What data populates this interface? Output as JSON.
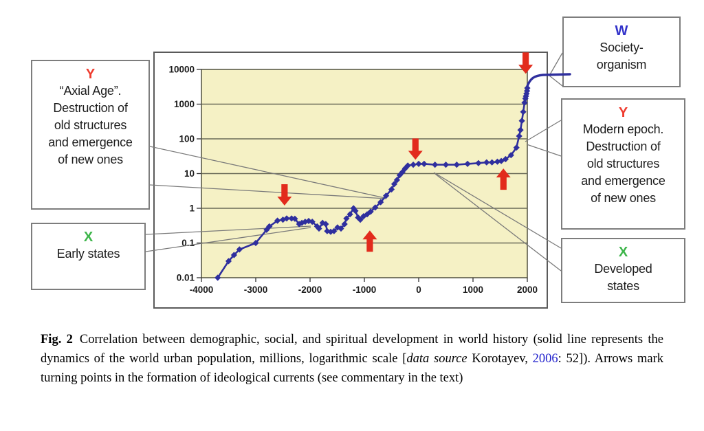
{
  "colors": {
    "letter_red": "#ef3b2e",
    "letter_green": "#3db54a",
    "letter_blue": "#3232ca",
    "line_navy": "#2f2f9e",
    "arrow_red": "#e22b1c",
    "plot_bg": "#f5f1c5",
    "gridline": "#6a6a58",
    "plot_border": "#50503f",
    "frame_border": "#5a5a5a",
    "box_border": "#7d7d7d",
    "citation_blue": "#2121cc",
    "tick_text": "#1a1a1a"
  },
  "callouts": {
    "axial_age": {
      "letter": "Y",
      "lines": [
        "“Axial Age”.",
        "Destruction of",
        "old structures",
        "and emergence",
        "of new ones"
      ]
    },
    "early_states": {
      "letter": "X",
      "lines": [
        "Early states"
      ]
    },
    "society_organism": {
      "letter": "W",
      "lines": [
        "Society-",
        "organism"
      ]
    },
    "modern_epoch": {
      "letter": "Y",
      "lines": [
        "Modern epoch.",
        "Destruction of",
        "old structures",
        "and emergence",
        "of new ones"
      ]
    },
    "developed_states": {
      "letter": "X",
      "lines": [
        "Developed",
        "states"
      ]
    }
  },
  "caption": {
    "label": "Fig. 2",
    "pre_italic": "Correlation between demographic, social, and spiritual development in world history (solid line represents the dynamics of the world urban population, millions, logarithmic scale [",
    "italic": "data source",
    "between": " Korotayev, ",
    "year_link": "2006",
    "post": ": 52]). Arrows mark turning points in the formation of ideological currents (see commentary in the text)"
  },
  "chart_data": {
    "type": "line",
    "title": "",
    "xlabel": "",
    "ylabel": "",
    "x_tick_labels": [
      "-4000",
      "-3000",
      "-2000",
      "-1000",
      "0",
      "1000",
      "2000"
    ],
    "y_tick_labels": [
      "10000",
      "1000",
      "100",
      "10",
      "1",
      "0.1",
      "0.01"
    ],
    "xlim": [
      -4000,
      2000
    ],
    "ylim_log": [
      0.01,
      10000
    ],
    "grid": "horizontal",
    "legend": "none",
    "series": [
      {
        "name": "world urban population, millions (log scale)",
        "marker": "diamond",
        "points": [
          [
            -3700,
            0.01
          ],
          [
            -3500,
            0.03
          ],
          [
            -3400,
            0.045
          ],
          [
            -3300,
            0.065
          ],
          [
            -3000,
            0.1
          ],
          [
            -2800,
            0.24
          ],
          [
            -2750,
            0.3
          ],
          [
            -2600,
            0.44
          ],
          [
            -2500,
            0.47
          ],
          [
            -2430,
            0.51
          ],
          [
            -2340,
            0.51
          ],
          [
            -2280,
            0.5
          ],
          [
            -2200,
            0.35
          ],
          [
            -2150,
            0.38
          ],
          [
            -2090,
            0.41
          ],
          [
            -2025,
            0.43
          ],
          [
            -1960,
            0.41
          ],
          [
            -1870,
            0.3
          ],
          [
            -1835,
            0.26
          ],
          [
            -1770,
            0.38
          ],
          [
            -1710,
            0.35
          ],
          [
            -1685,
            0.22
          ],
          [
            -1620,
            0.21
          ],
          [
            -1560,
            0.22
          ],
          [
            -1495,
            0.28
          ],
          [
            -1430,
            0.26
          ],
          [
            -1365,
            0.35
          ],
          [
            -1330,
            0.51
          ],
          [
            -1265,
            0.67
          ],
          [
            -1200,
            1.0
          ],
          [
            -1165,
            0.84
          ],
          [
            -1115,
            0.54
          ],
          [
            -1075,
            0.47
          ],
          [
            -1015,
            0.59
          ],
          [
            -950,
            0.67
          ],
          [
            -885,
            0.8
          ],
          [
            -800,
            1.05
          ],
          [
            -700,
            1.5
          ],
          [
            -600,
            2.3
          ],
          [
            -500,
            3.5
          ],
          [
            -450,
            5.0
          ],
          [
            -400,
            6.5
          ],
          [
            -350,
            9.0
          ],
          [
            -300,
            11
          ],
          [
            -250,
            14
          ],
          [
            -200,
            17
          ],
          [
            -100,
            18
          ],
          [
            0,
            19
          ],
          [
            100,
            19
          ],
          [
            300,
            18
          ],
          [
            500,
            18
          ],
          [
            700,
            18
          ],
          [
            900,
            19
          ],
          [
            1100,
            20
          ],
          [
            1250,
            21
          ],
          [
            1350,
            21
          ],
          [
            1450,
            22
          ],
          [
            1520,
            23
          ],
          [
            1600,
            26
          ],
          [
            1700,
            34
          ],
          [
            1800,
            56
          ],
          [
            1850,
            120
          ],
          [
            1875,
            180
          ],
          [
            1900,
            330
          ],
          [
            1925,
            600
          ],
          [
            1950,
            1100
          ],
          [
            1965,
            1450
          ],
          [
            1975,
            1700
          ],
          [
            1985,
            2000
          ],
          [
            1995,
            2400
          ],
          [
            2000,
            2900
          ]
        ]
      }
    ],
    "arrows": [
      {
        "direction": "down",
        "year": -2470,
        "tip_value": 1.2
      },
      {
        "direction": "up",
        "year": -900,
        "tip_value": 0.23
      },
      {
        "direction": "down",
        "year": -60,
        "tip_value": 25
      },
      {
        "direction": "up",
        "year": 1560,
        "tip_value": 14
      },
      {
        "direction": "down",
        "year": 1970,
        "tip_value": 7500
      }
    ],
    "projection_note": "solid line continues beyond 2000 CE, bending rightward out of the plot toward the Society-organism label"
  }
}
